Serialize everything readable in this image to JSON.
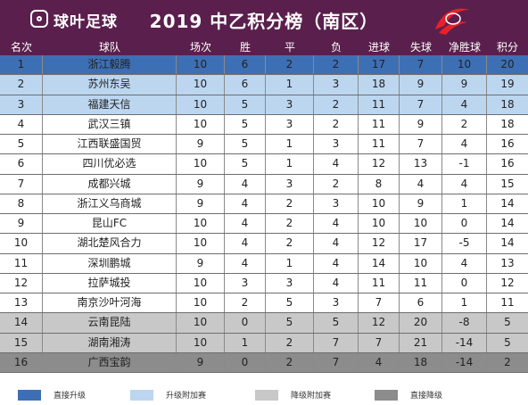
{
  "header": {
    "logo_text": "球叶足球",
    "title": "2019 中乙积分榜（南区）"
  },
  "columns": [
    "名次",
    "球队",
    "场次",
    "胜",
    "平",
    "负",
    "进球",
    "失球",
    "净胜球",
    "积分"
  ],
  "colors": {
    "header_bg": "#5a1f4d",
    "direct_promotion": "#3d6fb4",
    "promotion_playoff": "#bcd6f0",
    "relegation_playoff": "#c8c8c8",
    "direct_relegation": "#8c8c8c",
    "plain": "#ffffff"
  },
  "rows": [
    {
      "rank": "1",
      "team": "浙江毅腾",
      "mp": "10",
      "w": "6",
      "d": "2",
      "l": "2",
      "gf": "17",
      "ga": "7",
      "gd": "10",
      "pts": "20",
      "zone": "direct_promotion"
    },
    {
      "rank": "2",
      "team": "苏州东吴",
      "mp": "10",
      "w": "6",
      "d": "1",
      "l": "3",
      "gf": "18",
      "ga": "9",
      "gd": "9",
      "pts": "19",
      "zone": "promotion_playoff"
    },
    {
      "rank": "3",
      "team": "福建天信",
      "mp": "10",
      "w": "5",
      "d": "3",
      "l": "2",
      "gf": "11",
      "ga": "7",
      "gd": "4",
      "pts": "18",
      "zone": "promotion_playoff"
    },
    {
      "rank": "4",
      "team": "武汉三镇",
      "mp": "10",
      "w": "5",
      "d": "3",
      "l": "2",
      "gf": "11",
      "ga": "9",
      "gd": "2",
      "pts": "18",
      "zone": "plain"
    },
    {
      "rank": "5",
      "team": "江西联盛国贸",
      "mp": "9",
      "w": "5",
      "d": "1",
      "l": "3",
      "gf": "11",
      "ga": "7",
      "gd": "4",
      "pts": "16",
      "zone": "plain"
    },
    {
      "rank": "6",
      "team": "四川优必选",
      "mp": "10",
      "w": "5",
      "d": "1",
      "l": "4",
      "gf": "12",
      "ga": "13",
      "gd": "-1",
      "pts": "16",
      "zone": "plain"
    },
    {
      "rank": "7",
      "team": "成都兴城",
      "mp": "9",
      "w": "4",
      "d": "3",
      "l": "2",
      "gf": "8",
      "ga": "4",
      "gd": "4",
      "pts": "15",
      "zone": "plain"
    },
    {
      "rank": "8",
      "team": "浙江义乌商城",
      "mp": "9",
      "w": "4",
      "d": "2",
      "l": "3",
      "gf": "10",
      "ga": "9",
      "gd": "1",
      "pts": "14",
      "zone": "plain"
    },
    {
      "rank": "9",
      "team": "昆山FC",
      "mp": "10",
      "w": "4",
      "d": "2",
      "l": "4",
      "gf": "10",
      "ga": "10",
      "gd": "0",
      "pts": "14",
      "zone": "plain"
    },
    {
      "rank": "10",
      "team": "湖北楚风合力",
      "mp": "10",
      "w": "4",
      "d": "2",
      "l": "4",
      "gf": "12",
      "ga": "17",
      "gd": "-5",
      "pts": "14",
      "zone": "plain"
    },
    {
      "rank": "11",
      "team": "深圳鹏城",
      "mp": "9",
      "w": "4",
      "d": "1",
      "l": "4",
      "gf": "14",
      "ga": "10",
      "gd": "4",
      "pts": "13",
      "zone": "plain"
    },
    {
      "rank": "12",
      "team": "拉萨城投",
      "mp": "10",
      "w": "3",
      "d": "3",
      "l": "4",
      "gf": "11",
      "ga": "11",
      "gd": "0",
      "pts": "12",
      "zone": "plain"
    },
    {
      "rank": "13",
      "team": "南京沙叶河海",
      "mp": "10",
      "w": "2",
      "d": "5",
      "l": "3",
      "gf": "7",
      "ga": "6",
      "gd": "1",
      "pts": "11",
      "zone": "plain"
    },
    {
      "rank": "14",
      "team": "云南昆陆",
      "mp": "10",
      "w": "0",
      "d": "5",
      "l": "5",
      "gf": "12",
      "ga": "20",
      "gd": "-8",
      "pts": "5",
      "zone": "relegation_playoff"
    },
    {
      "rank": "15",
      "team": "湖南湘涛",
      "mp": "10",
      "w": "1",
      "d": "2",
      "l": "7",
      "gf": "7",
      "ga": "21",
      "gd": "-14",
      "pts": "5",
      "zone": "relegation_playoff"
    },
    {
      "rank": "16",
      "team": "广西宝韵",
      "mp": "9",
      "w": "0",
      "d": "2",
      "l": "7",
      "gf": "4",
      "ga": "18",
      "gd": "-14",
      "pts": "2",
      "zone": "direct_relegation"
    }
  ],
  "legend": [
    {
      "label": "直接升级",
      "zone": "direct_promotion"
    },
    {
      "label": "升级附加赛",
      "zone": "promotion_playoff"
    },
    {
      "label": "降级附加赛",
      "zone": "relegation_playoff"
    },
    {
      "label": "直接降级",
      "zone": "direct_relegation"
    }
  ]
}
